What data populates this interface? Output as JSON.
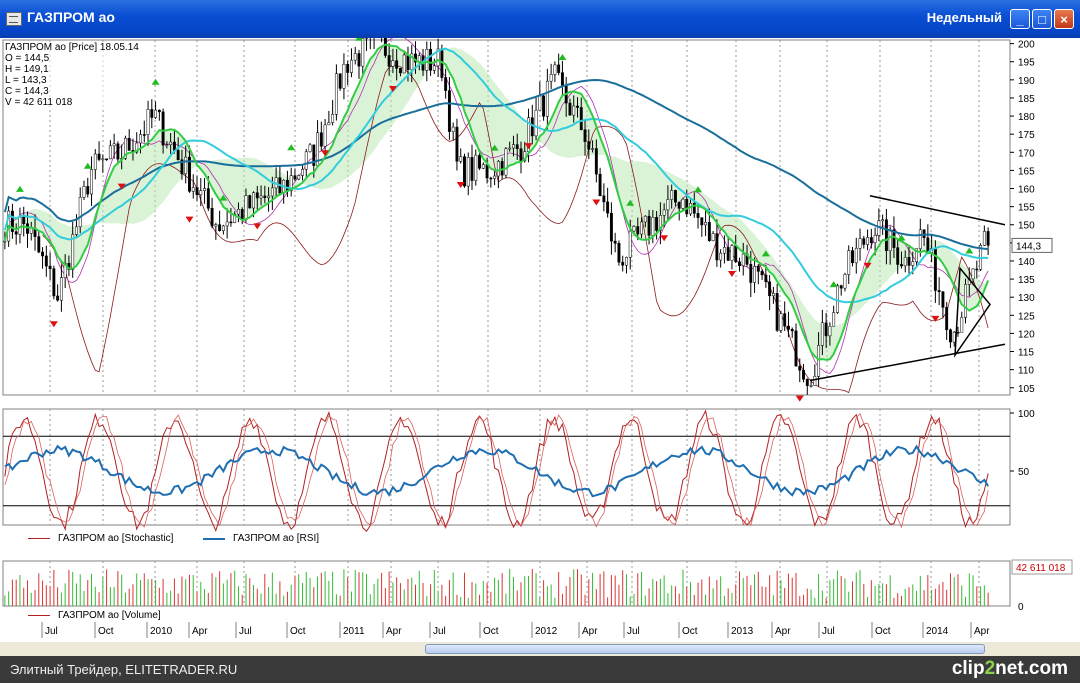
{
  "window": {
    "title": "ГАЗПРОМ ао",
    "period": "Недельный",
    "buttons": {
      "minimize": "_",
      "maximize": "□",
      "close": "×"
    }
  },
  "info": {
    "header": "ГАЗПРОМ ао [Price] 18.05.14",
    "open": "O = 144,5",
    "high": "H = 149,1",
    "low": "L = 143,3",
    "close": "C = 144,3",
    "volume": "V = 42 611 018"
  },
  "price_axis": {
    "ticks": [
      "200",
      "195",
      "190",
      "185",
      "180",
      "175",
      "170",
      "165",
      "160",
      "155",
      "150",
      "145",
      "140",
      "135",
      "130",
      "125",
      "120",
      "115",
      "110",
      "105"
    ],
    "last_price": "144,3"
  },
  "oscillator_axis": {
    "ticks": [
      "100",
      "50"
    ]
  },
  "volume_axis": {
    "ticks": [
      "42 611 018",
      "0"
    ]
  },
  "legend": {
    "stochastic": "ГАЗПРОМ ао [Stochastic]",
    "rsi": "ГАЗПРОМ ао [RSI]",
    "volume": "ГАЗПРОМ ао [Volume]"
  },
  "time_axis": [
    "Jul",
    "Oct",
    "2010",
    "Apr",
    "Jul",
    "Oct",
    "2011",
    "Apr",
    "Jul",
    "Oct",
    "2012",
    "Apr",
    "Jul",
    "Oct",
    "2013",
    "Apr",
    "Jul",
    "Oct",
    "2014",
    "Apr"
  ],
  "colors": {
    "stochastic": "#b22222",
    "rsi": "#1f6fb2",
    "ma_long": "#1a6f9a",
    "ma_mid": "#33ccdd",
    "ma_short": "#33cc44",
    "up_arrow": "#22bb22",
    "down_arrow": "#dd1111"
  },
  "footer": {
    "credit": "Элитный Трейдер, ELITETRADER.RU",
    "watermark_pre": "clip",
    "watermark_mid": "2",
    "watermark_post": "net.com"
  },
  "chart_data": {
    "type": "candlestick",
    "period": "weekly",
    "ylim": [
      103,
      201
    ],
    "close_series": [
      {
        "date": "2009-05",
        "value": 150
      },
      {
        "date": "2009-07",
        "value": 130
      },
      {
        "date": "2009-09",
        "value": 165
      },
      {
        "date": "2009-11",
        "value": 170
      },
      {
        "date": "2010-01",
        "value": 180
      },
      {
        "date": "2010-03",
        "value": 165
      },
      {
        "date": "2010-05",
        "value": 150
      },
      {
        "date": "2010-07",
        "value": 155
      },
      {
        "date": "2010-09",
        "value": 160
      },
      {
        "date": "2010-11",
        "value": 170
      },
      {
        "date": "2011-01",
        "value": 195
      },
      {
        "date": "2011-03",
        "value": 200
      },
      {
        "date": "2011-05",
        "value": 195
      },
      {
        "date": "2011-07",
        "value": 195
      },
      {
        "date": "2011-08",
        "value": 165
      },
      {
        "date": "2011-10",
        "value": 165
      },
      {
        "date": "2011-12",
        "value": 172
      },
      {
        "date": "2012-02",
        "value": 190
      },
      {
        "date": "2012-04",
        "value": 175
      },
      {
        "date": "2012-06",
        "value": 140
      },
      {
        "date": "2012-08",
        "value": 150
      },
      {
        "date": "2012-10",
        "value": 158
      },
      {
        "date": "2012-12",
        "value": 145
      },
      {
        "date": "2013-02",
        "value": 140
      },
      {
        "date": "2013-04",
        "value": 125
      },
      {
        "date": "2013-06",
        "value": 108
      },
      {
        "date": "2013-08",
        "value": 135
      },
      {
        "date": "2013-10",
        "value": 150
      },
      {
        "date": "2013-12",
        "value": 140
      },
      {
        "date": "2014-01",
        "value": 148
      },
      {
        "date": "2014-03",
        "value": 120
      },
      {
        "date": "2014-05",
        "value": 144.3
      }
    ],
    "last": {
      "open": 144.5,
      "high": 149.1,
      "low": 143.3,
      "close": 144.3,
      "volume": 42611018
    }
  }
}
